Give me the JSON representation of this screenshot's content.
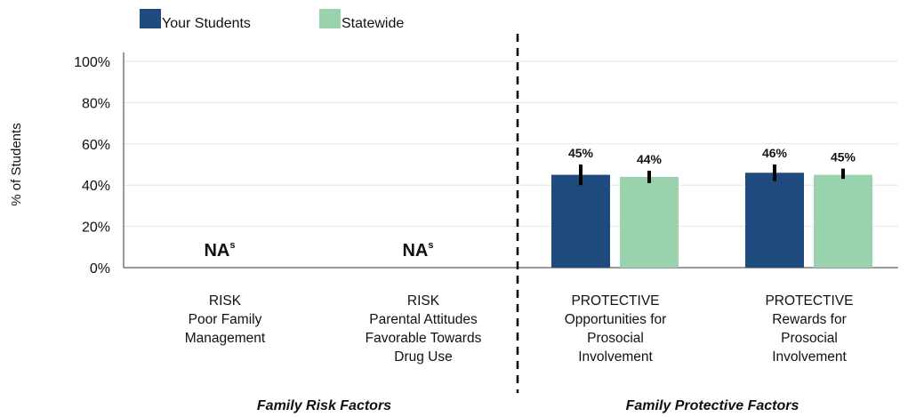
{
  "chart_data": {
    "type": "bar",
    "ylabel": "% of Students",
    "ylim": [
      0,
      100
    ],
    "yticks": [
      "0%",
      "20%",
      "40%",
      "60%",
      "80%",
      "100%"
    ],
    "grid": true,
    "legend_position": "top-left",
    "colors": {
      "your_students": "#1f4a7e",
      "statewide": "#99d2ad",
      "error_bar": "#000000",
      "divider": "#000000"
    },
    "series": [
      {
        "name": "Your Students",
        "color": "#1f4a7e"
      },
      {
        "name": "Statewide",
        "color": "#99d2ad"
      }
    ],
    "categories": [
      {
        "lines": [
          "RISK",
          "Poor Family",
          "Management"
        ],
        "na_text": "NA",
        "na_sup": "s",
        "values": [
          null,
          null
        ],
        "labels": [
          "",
          ""
        ],
        "errors": [
          null,
          null
        ]
      },
      {
        "lines": [
          "RISK",
          "Parental Attitudes",
          "Favorable Towards",
          "Drug Use"
        ],
        "na_text": "NA",
        "na_sup": "s",
        "values": [
          null,
          null
        ],
        "labels": [
          "",
          ""
        ],
        "errors": [
          null,
          null
        ]
      },
      {
        "lines": [
          "PROTECTIVE",
          "Opportunities for",
          "Prosocial",
          "Involvement"
        ],
        "na_text": "",
        "na_sup": "",
        "values": [
          45,
          44
        ],
        "labels": [
          "45%",
          "44%"
        ],
        "errors": [
          [
            40,
            50
          ],
          [
            41,
            47
          ]
        ]
      },
      {
        "lines": [
          "PROTECTIVE",
          "Rewards for",
          "Prosocial",
          "Involvement"
        ],
        "na_text": "",
        "na_sup": "",
        "values": [
          46,
          45
        ],
        "labels": [
          "46%",
          "45%"
        ],
        "errors": [
          [
            42,
            50
          ],
          [
            43,
            48
          ]
        ]
      }
    ],
    "groups": [
      {
        "label": "Family Risk Factors",
        "span": [
          0,
          1
        ]
      },
      {
        "label": "Family Protective Factors",
        "span": [
          2,
          3
        ]
      }
    ]
  }
}
